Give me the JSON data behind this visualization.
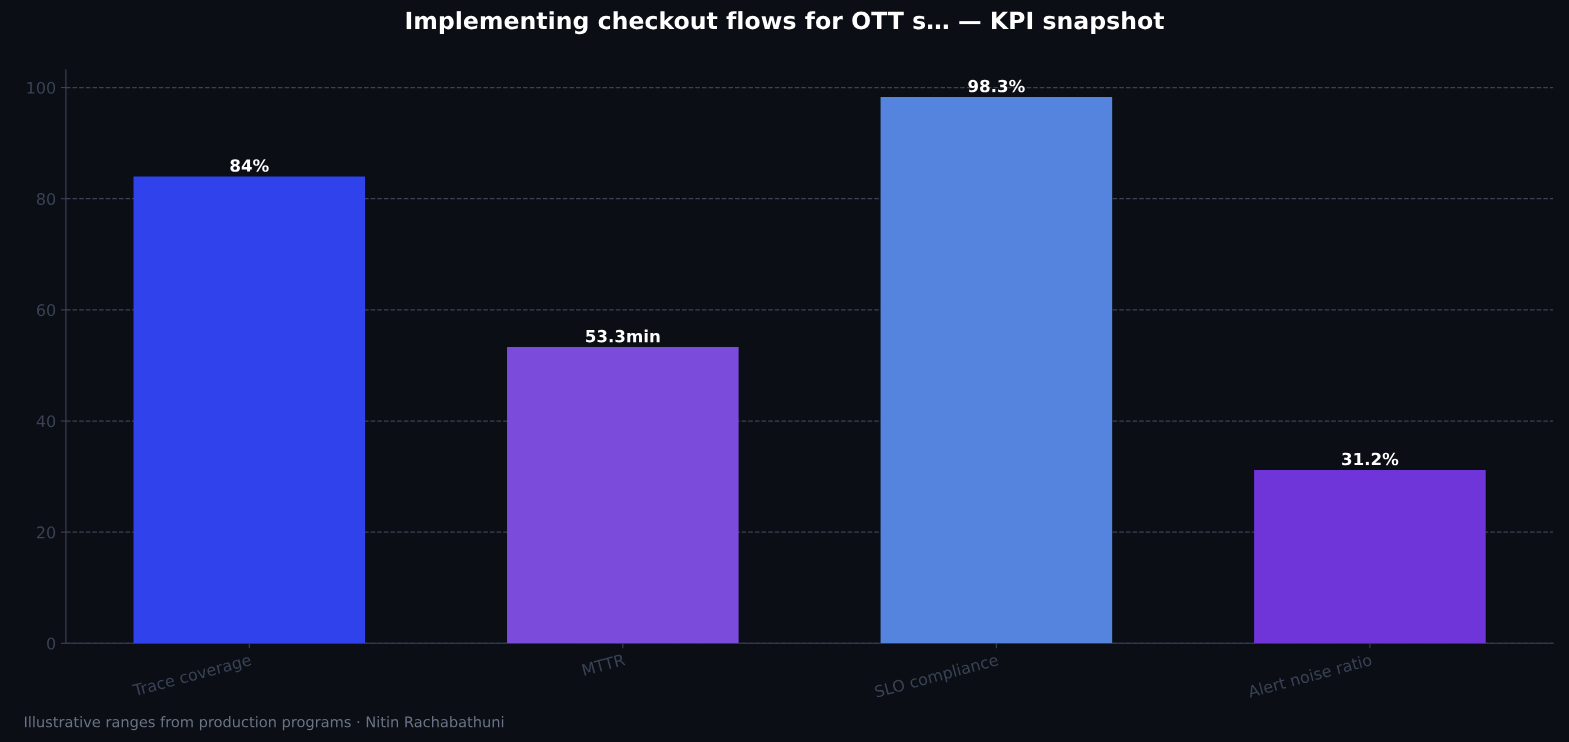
{
  "chart_data": {
    "type": "bar",
    "title": "Implementing checkout flows for OTT s… — KPI snapshot",
    "categories": [
      "Trace coverage",
      "MTTR",
      "SLO compliance",
      "Alert noise ratio"
    ],
    "values": [
      84,
      53.3,
      98.3,
      31.2
    ],
    "colors": [
      "#2f42ec",
      "#7b4cdc",
      "#5584de",
      "#7035d8"
    ],
    "value_labels": [
      "84%",
      "53.3min",
      "98.3%",
      "31.2%"
    ],
    "ylim": [
      0,
      103.2
    ],
    "yticks": [
      0,
      20,
      40,
      60,
      80,
      100
    ],
    "grid": "y",
    "legend": false,
    "annotations": [
      "Illustrative ranges from production programs · Nitin Rachabathuni"
    ]
  }
}
